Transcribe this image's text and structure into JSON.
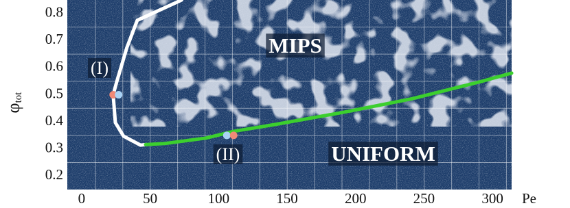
{
  "chart_data": {
    "type": "line",
    "x_label": "Pe",
    "y_label": "φ",
    "y_label_sub": "tot",
    "xlim": [
      -10.5,
      314
    ],
    "ylim": [
      0.15,
      0.85
    ],
    "xticks": [
      0,
      50,
      100,
      150,
      200,
      250,
      300
    ],
    "yticks": [
      0.2,
      0.3,
      0.4,
      0.5,
      0.6,
      0.7,
      0.8
    ],
    "curves": [
      {
        "color": "#ffffff",
        "x": [
          73,
          40.6,
          33,
          25.6,
          23,
          24.6,
          30.6,
          43,
          46.7
        ],
        "values": [
          0.85,
          0.775,
          0.674,
          0.548,
          0.5,
          0.397,
          0.347,
          0.314,
          0.316
        ]
      },
      {
        "color": "#3ccf2e",
        "x": [
          46.7,
          60.7,
          90.8,
          111,
          141,
          191,
          241,
          291,
          314
        ],
        "values": [
          0.316,
          0.32,
          0.34,
          0.365,
          0.39,
          0.435,
          0.485,
          0.548,
          0.58
        ]
      }
    ],
    "points": [
      {
        "x": 23,
        "y": 0.5,
        "color": "#f08a78"
      },
      {
        "x": 27,
        "y": 0.5,
        "color": "#a9d2f5"
      },
      {
        "x": 106,
        "y": 0.35,
        "color": "#a9d2f5"
      },
      {
        "x": 111,
        "y": 0.35,
        "color": "#f08a78"
      }
    ],
    "annotations": [
      "MIPS",
      "UNIFORM",
      "(I)",
      "(II)"
    ]
  }
}
